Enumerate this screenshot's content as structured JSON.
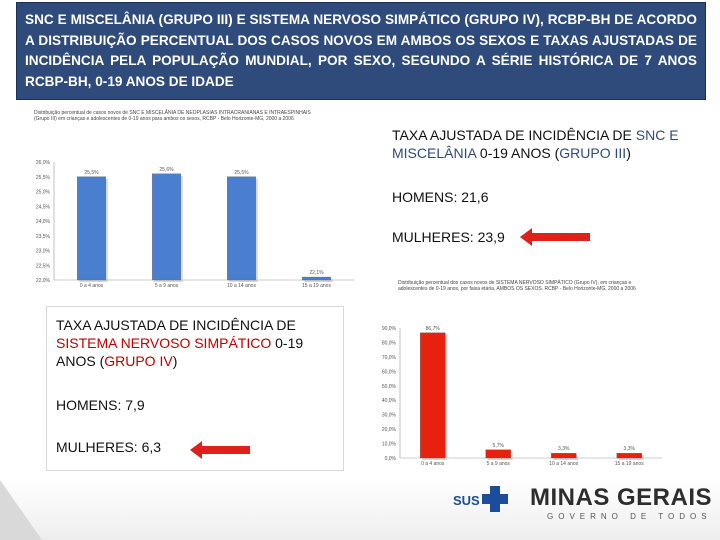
{
  "header": {
    "text": "SNC E MISCELÂNIA (GRUPO III) E SISTEMA NERVOSO SIMPÁTICO (GRUPO IV), RCBP-BH DE ACORDO A DISTRIBUIÇÃO PERCENTUAL DOS CASOS NOVOS EM AMBOS OS SEXOS E TAXAS AJUSTADAS DE INCIDÊNCIA PELA POPULAÇÃO MUNDIAL, POR SEXO, SEGUNDO A SÉRIE HISTÓRICA DE 7 ANOS RCBP-BH, 0-19 ANOS DE IDADE"
  },
  "box_snc": {
    "title_1": "TAXA AJUSTADA DE INCIDÊNCIA DE ",
    "title_highlight": "SNC E MISCELÂNIA",
    "title_2": " 0-19 ANOS (",
    "title_group": "GRUPO III",
    "title_3": ")",
    "homens": "HOMENS: 21,6",
    "mulheres": "MULHERES: 23,9"
  },
  "box_sns": {
    "title_1": "TAXA AJUSTADA DE INCIDÊNCIA DE ",
    "title_highlight": "SISTEMA NERVOSO SIMPÁTICO",
    "title_2": " 0-19 ANOS (",
    "title_group": "GRUPO IV",
    "title_3": ")",
    "homens": "HOMENS: 7,9",
    "mulheres": "MULHERES: 6,3"
  },
  "footer": {
    "sus": "SUS",
    "minas": "MINAS GERAIS",
    "governo": "GOVERNO DE TODOS"
  },
  "colors": {
    "header_bg": "#2e4b7c",
    "bar_blue": "#4a7fd0",
    "bar_red": "#e8200e",
    "arrow_red": "#e0201a"
  },
  "chart_data": [
    {
      "type": "bar",
      "title": "Distribuição percentual de casos novos de SNC E MISCELÂNIA DE NEOPLASIAS INTRACRANIANAS E INTRAESPINHAIS (Grupo III) em crianças e adolescentes de 0-19 anos para ambos os sexos, RCBP - Belo Horizonte-MG, 2000 a 2006",
      "categories": [
        "0 a 4 anos",
        "5 a 9 anos",
        "10 a 14 anos",
        "15 a 19 anos"
      ],
      "values": [
        25.5,
        25.6,
        25.5,
        22.1
      ],
      "value_labels": [
        "25,5%",
        "25,6%",
        "25,5%",
        "22,1%"
      ],
      "ylim": [
        22.0,
        26.0
      ],
      "yticks": [
        "26,0%",
        "25,5%",
        "25,0%",
        "24,5%",
        "24,0%",
        "23,5%",
        "23,0%",
        "22,5%",
        "22,0%"
      ],
      "xlabel": "",
      "ylabel": ""
    },
    {
      "type": "bar",
      "title": "Distribuição percentual dos casos novos de SISTEMA NERVOSO SIMPÁTICO (Grupo IV), em crianças e adolescentes de 0-19 anos, por faixa etária, AMBOS OS SEXOS. RCBP - Belo Horizonte-MG, 2000 a 2006",
      "categories": [
        "0 a 4 anos",
        "5 a 9 anos",
        "10 a 14 anos",
        "15 a 19 anos"
      ],
      "values": [
        86.7,
        5.7,
        3.3,
        3.3
      ],
      "value_labels": [
        "86,7%",
        "5,7%",
        "3,3%",
        "3,3%"
      ],
      "ylim": [
        0,
        90
      ],
      "yticks": [
        "90,0%",
        "80,0%",
        "70,0%",
        "60,0%",
        "50,0%",
        "40,0%",
        "30,0%",
        "20,0%",
        "10,0%",
        "0,0%"
      ],
      "xlabel": "",
      "ylabel": ""
    }
  ]
}
